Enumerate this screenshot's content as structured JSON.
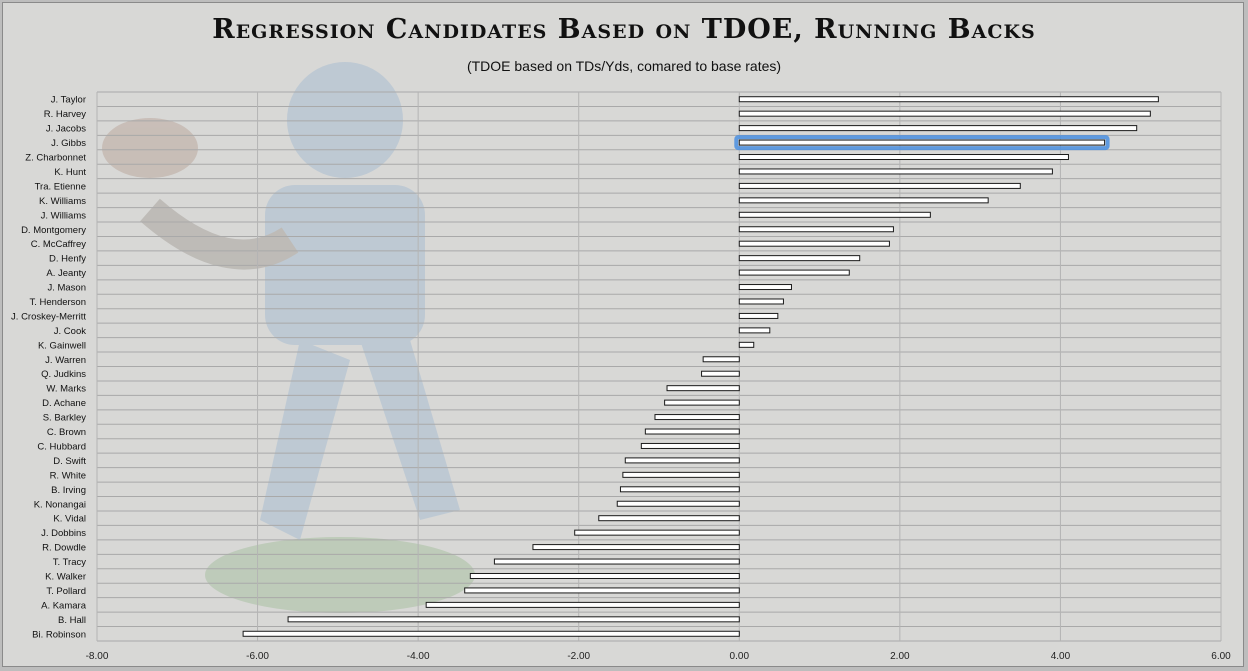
{
  "chart_data": {
    "type": "bar",
    "orientation": "horizontal",
    "title": "Regression Candidates Based on TDOE, Running Backs",
    "subtitle": "(TDOE based on TDs/Yds, comared to base rates)",
    "xlim": [
      -8,
      6
    ],
    "xticks": [
      "-8.00",
      "-6.00",
      "-4.00",
      "-2.00",
      "0.00",
      "2.00",
      "4.00",
      "6.00"
    ],
    "highlight": "J. Gibbs",
    "highlight_color": "#4a8fe0",
    "grid": true,
    "categories": [
      "J. Taylor",
      "R. Harvey",
      "J. Jacobs",
      "J. Gibbs",
      "Z. Charbonnet",
      "K. Hunt",
      "Tra. Etienne",
      "K. Williams",
      "J. Williams",
      "D. Montgomery",
      "C. McCaffrey",
      "D. Henfy",
      "A. Jeanty",
      "J. Mason",
      "T. Henderson",
      "J. Croskey-Merritt",
      "J. Cook",
      "K. Gainwell",
      "J. Warren",
      "Q. Judkins",
      "W. Marks",
      "D. Achane",
      "S. Barkley",
      "C. Brown",
      "C. Hubbard",
      "D. Swift",
      "R. White",
      "B. Irving",
      "K. Nonangai",
      "K. Vidal",
      "J. Dobbins",
      "R. Dowdle",
      "T. Tracy",
      "K. Walker",
      "T. Pollard",
      "A. Kamara",
      "B. Hall",
      "Bi. Robinson"
    ],
    "values": [
      5.22,
      5.12,
      4.95,
      4.55,
      4.1,
      3.9,
      3.5,
      3.1,
      2.38,
      1.92,
      1.87,
      1.5,
      1.37,
      0.65,
      0.55,
      0.48,
      0.38,
      0.18,
      -0.45,
      -0.47,
      -0.9,
      -0.93,
      -1.05,
      -1.17,
      -1.22,
      -1.42,
      -1.45,
      -1.48,
      -1.52,
      -1.75,
      -2.05,
      -2.57,
      -3.05,
      -3.35,
      -3.42,
      -3.9,
      -5.62,
      -6.18
    ]
  }
}
